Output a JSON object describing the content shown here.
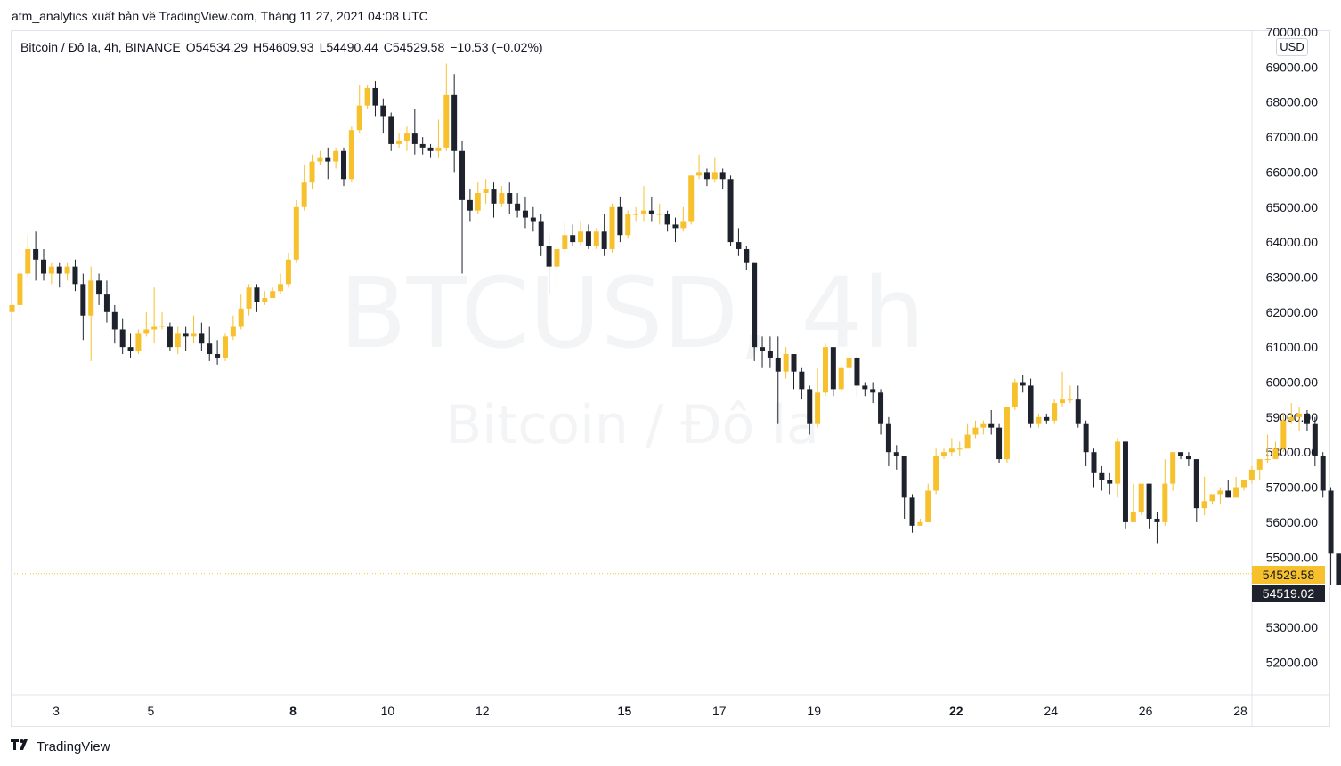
{
  "header": {
    "attribution": "atm_analytics xuất bản về TradingView.com, Tháng 11 27, 2021 04:08 UTC"
  },
  "legend": {
    "symbol": "Bitcoin / Đô la, 4h, BINANCE",
    "open": "O54534.29",
    "high": "H54609.93",
    "low": "L54490.44",
    "close": "C54529.58",
    "change": "−10.53 (−0.02%)"
  },
  "currency": "USD",
  "watermark": {
    "line1": "BTCUSD, 4h",
    "line2": "Bitcoin / Đô la"
  },
  "price_labels": {
    "close": "54529.58",
    "prev": "54519.02"
  },
  "footer": {
    "brand": "TradingView"
  },
  "colors": {
    "up": "#f7c02d",
    "down": "#1e222d",
    "price_line": "#f7c02d"
  },
  "chart_data": {
    "type": "candlestick",
    "ylim": [
      51000,
      70000
    ],
    "yticks": [
      "70000.00",
      "69000.00",
      "68000.00",
      "67000.00",
      "66000.00",
      "65000.00",
      "64000.00",
      "63000.00",
      "62000.00",
      "61000.00",
      "60000.00",
      "59000.00",
      "58000.00",
      "57000.00",
      "56000.00",
      "55000.00",
      "53000.00",
      "52000.00"
    ],
    "xticks": [
      {
        "label": "3",
        "day": 3,
        "bold": false
      },
      {
        "label": "5",
        "day": 5,
        "bold": false
      },
      {
        "label": "8",
        "day": 8,
        "bold": true
      },
      {
        "label": "10",
        "day": 10,
        "bold": false
      },
      {
        "label": "12",
        "day": 12,
        "bold": false
      },
      {
        "label": "15",
        "day": 15,
        "bold": true
      },
      {
        "label": "17",
        "day": 17,
        "bold": false
      },
      {
        "label": "19",
        "day": 19,
        "bold": false
      },
      {
        "label": "22",
        "day": 22,
        "bold": true
      },
      {
        "label": "24",
        "day": 24,
        "bold": false
      },
      {
        "label": "26",
        "day": 26,
        "bold": false
      },
      {
        "label": "28",
        "day": 28,
        "bold": false
      }
    ],
    "x_start_day": 2.07,
    "candle_interval_days": 0.1667,
    "current_price": 54529.58,
    "candles": [
      [
        62000,
        62600,
        62200,
        61300
      ],
      [
        62200,
        63200,
        63100,
        62000
      ],
      [
        63100,
        64200,
        63800,
        63000
      ],
      [
        63800,
        64300,
        63500,
        62900
      ],
      [
        63500,
        63800,
        63100,
        62900
      ],
      [
        63100,
        63400,
        63300,
        62800
      ],
      [
        63300,
        63400,
        63100,
        62700
      ],
      [
        63100,
        63400,
        63300,
        62900
      ],
      [
        63300,
        63500,
        62800,
        62600
      ],
      [
        62800,
        63100,
        61900,
        61200
      ],
      [
        61900,
        63300,
        62900,
        60600
      ],
      [
        62900,
        63100,
        62500,
        62200
      ],
      [
        62500,
        62900,
        62000,
        61700
      ],
      [
        62000,
        62200,
        61500,
        61100
      ],
      [
        61500,
        61800,
        61000,
        60800
      ],
      [
        61000,
        61400,
        60900,
        60700
      ],
      [
        60900,
        61500,
        61400,
        60800
      ],
      [
        61400,
        62000,
        61500,
        61300
      ],
      [
        61500,
        62700,
        61600,
        61100
      ],
      [
        61600,
        62000,
        61600,
        61500
      ],
      [
        61600,
        61700,
        61000,
        60900
      ],
      [
        61000,
        61600,
        61400,
        60800
      ],
      [
        61400,
        61600,
        61300,
        60900
      ],
      [
        61300,
        61900,
        61400,
        61100
      ],
      [
        61400,
        61700,
        61100,
        60900
      ],
      [
        61100,
        61600,
        60800,
        60600
      ],
      [
        60800,
        61200,
        60700,
        60500
      ],
      [
        60700,
        61400,
        61300,
        60600
      ],
      [
        61300,
        61900,
        61600,
        61200
      ],
      [
        61600,
        62500,
        62100,
        61500
      ],
      [
        62100,
        62800,
        62700,
        61900
      ],
      [
        62700,
        62800,
        62300,
        62000
      ],
      [
        62300,
        62600,
        62400,
        62200
      ],
      [
        62400,
        62700,
        62600,
        62400
      ],
      [
        62600,
        63100,
        62800,
        62500
      ],
      [
        62800,
        63700,
        63500,
        62700
      ],
      [
        63500,
        65200,
        65000,
        63400
      ],
      [
        65000,
        66200,
        65700,
        64900
      ],
      [
        65700,
        66500,
        66300,
        65500
      ],
      [
        66300,
        66600,
        66400,
        66200
      ],
      [
        66400,
        66700,
        66300,
        65800
      ],
      [
        66300,
        66700,
        66600,
        66100
      ],
      [
        66600,
        66700,
        65800,
        65600
      ],
      [
        65800,
        67300,
        67200,
        65700
      ],
      [
        67200,
        68500,
        67900,
        67100
      ],
      [
        67900,
        68500,
        68400,
        67800
      ],
      [
        68400,
        68600,
        67900,
        67600
      ],
      [
        67900,
        68100,
        67600,
        67100
      ],
      [
        67600,
        67700,
        66800,
        66600
      ],
      [
        66800,
        67100,
        66900,
        66700
      ],
      [
        66900,
        67300,
        67100,
        66600
      ],
      [
        67100,
        67800,
        66800,
        66500
      ],
      [
        66800,
        67000,
        66700,
        66500
      ],
      [
        66700,
        66800,
        66600,
        66400
      ],
      [
        66600,
        67500,
        66700,
        66400
      ],
      [
        66700,
        69100,
        68200,
        66600
      ],
      [
        68200,
        68800,
        66600,
        66000
      ],
      [
        66600,
        66900,
        65200,
        63100
      ],
      [
        65200,
        65500,
        64900,
        64600
      ],
      [
        64900,
        65700,
        65400,
        64800
      ],
      [
        65400,
        65800,
        65500,
        65100
      ],
      [
        65500,
        65700,
        65100,
        64700
      ],
      [
        65100,
        65600,
        65400,
        65000
      ],
      [
        65400,
        65700,
        65100,
        64800
      ],
      [
        65100,
        65400,
        64900,
        64700
      ],
      [
        64900,
        65300,
        64700,
        64400
      ],
      [
        64700,
        65000,
        64600,
        64300
      ],
      [
        64600,
        64800,
        63900,
        63600
      ],
      [
        63900,
        64200,
        63300,
        62500
      ],
      [
        63300,
        64000,
        63800,
        62600
      ],
      [
        63800,
        64600,
        64200,
        63700
      ],
      [
        64200,
        64500,
        64000,
        63900
      ],
      [
        64000,
        64600,
        64300,
        63900
      ],
      [
        64300,
        64500,
        63900,
        63800
      ],
      [
        63900,
        64400,
        64300,
        63800
      ],
      [
        64300,
        64800,
        63800,
        63600
      ],
      [
        63800,
        65100,
        65000,
        63700
      ],
      [
        65000,
        65300,
        64200,
        64000
      ],
      [
        64200,
        64900,
        64800,
        64100
      ],
      [
        64800,
        65000,
        64800,
        64600
      ],
      [
        64800,
        65600,
        64900,
        64600
      ],
      [
        64900,
        65300,
        64800,
        64600
      ],
      [
        64800,
        65100,
        64800,
        64500
      ],
      [
        64800,
        64900,
        64500,
        64300
      ],
      [
        64500,
        64700,
        64400,
        64000
      ],
      [
        64400,
        65000,
        64600,
        64300
      ],
      [
        64600,
        65900,
        65900,
        64500
      ],
      [
        65900,
        66500,
        66000,
        65800
      ],
      [
        66000,
        66100,
        65800,
        65600
      ],
      [
        65800,
        66400,
        66000,
        65700
      ],
      [
        66000,
        66100,
        65800,
        65500
      ],
      [
        65800,
        65900,
        64000,
        63900
      ],
      [
        64000,
        64400,
        63800,
        63600
      ],
      [
        63800,
        63900,
        63400,
        63200
      ],
      [
        63400,
        63400,
        61000,
        60600
      ],
      [
        61000,
        61300,
        60900,
        60400
      ],
      [
        60900,
        61300,
        60700,
        60400
      ],
      [
        60700,
        61300,
        60300,
        58800
      ],
      [
        60300,
        61000,
        60800,
        60100
      ],
      [
        60800,
        60800,
        60300,
        59800
      ],
      [
        60300,
        60400,
        59800,
        59500
      ],
      [
        59800,
        59900,
        58800,
        58500
      ],
      [
        58800,
        60400,
        59700,
        58700
      ],
      [
        59700,
        61100,
        61000,
        59600
      ],
      [
        61000,
        61000,
        59800,
        59600
      ],
      [
        59800,
        60500,
        60400,
        59700
      ],
      [
        60400,
        60800,
        60700,
        60200
      ],
      [
        60700,
        60800,
        59900,
        59600
      ],
      [
        59900,
        60000,
        59800,
        59600
      ],
      [
        59800,
        60000,
        59700,
        59400
      ],
      [
        59700,
        59800,
        58800,
        58500
      ],
      [
        58800,
        59000,
        58000,
        57600
      ],
      [
        58000,
        58200,
        57900,
        57500
      ],
      [
        57900,
        57900,
        56700,
        56100
      ],
      [
        56700,
        56800,
        55900,
        55700
      ],
      [
        55900,
        56100,
        56000,
        55900
      ],
      [
        56000,
        57100,
        56900,
        56000
      ],
      [
        56900,
        58100,
        57900,
        56800
      ],
      [
        57900,
        58100,
        58000,
        57800
      ],
      [
        58000,
        58400,
        58100,
        57900
      ],
      [
        58100,
        58300,
        58100,
        57900
      ],
      [
        58100,
        58800,
        58500,
        58100
      ],
      [
        58500,
        58900,
        58700,
        58400
      ],
      [
        58700,
        58900,
        58800,
        58500
      ],
      [
        58800,
        59200,
        58700,
        58500
      ],
      [
        58700,
        58800,
        57800,
        57700
      ],
      [
        57800,
        59300,
        59300,
        57700
      ],
      [
        59300,
        60100,
        60000,
        59200
      ],
      [
        60000,
        60200,
        59900,
        59700
      ],
      [
        59900,
        60100,
        58800,
        58700
      ],
      [
        58800,
        59100,
        59000,
        58700
      ],
      [
        59000,
        59100,
        58900,
        58800
      ],
      [
        58900,
        59500,
        59400,
        58800
      ],
      [
        59400,
        60300,
        59500,
        59300
      ],
      [
        59500,
        59900,
        59500,
        59400
      ],
      [
        59500,
        59900,
        58800,
        58700
      ],
      [
        58800,
        58900,
        58000,
        57600
      ],
      [
        58000,
        58100,
        57400,
        57000
      ],
      [
        57400,
        57600,
        57200,
        56900
      ],
      [
        57200,
        57400,
        57100,
        56800
      ],
      [
        57100,
        58400,
        58300,
        56700
      ],
      [
        58300,
        58300,
        56000,
        55800
      ],
      [
        56000,
        57100,
        56300,
        56000
      ],
      [
        56300,
        57100,
        57100,
        56200
      ],
      [
        57100,
        57100,
        56100,
        55800
      ],
      [
        56100,
        56300,
        56000,
        55400
      ],
      [
        56000,
        57800,
        57100,
        55900
      ],
      [
        57100,
        58000,
        58000,
        56900
      ],
      [
        58000,
        58000,
        57900,
        57800
      ],
      [
        57900,
        58000,
        57800,
        57600
      ],
      [
        57800,
        57800,
        56400,
        56000
      ],
      [
        56400,
        57300,
        56600,
        56200
      ],
      [
        56600,
        56800,
        56800,
        56500
      ],
      [
        56800,
        57000,
        56900,
        56500
      ],
      [
        56900,
        57200,
        56700,
        56700
      ],
      [
        56700,
        57300,
        57000,
        56700
      ],
      [
        57000,
        57200,
        57200,
        56900
      ],
      [
        57200,
        57600,
        57500,
        57100
      ],
      [
        57500,
        57800,
        57800,
        57200
      ],
      [
        57800,
        58500,
        57800,
        57700
      ],
      [
        57800,
        58300,
        58100,
        57800
      ],
      [
        58100,
        59100,
        58900,
        58000
      ],
      [
        58900,
        59400,
        59000,
        58800
      ],
      [
        59000,
        59300,
        59100,
        58600
      ],
      [
        59100,
        59200,
        58800,
        58600
      ],
      [
        58800,
        59000,
        57900,
        57600
      ],
      [
        57900,
        58000,
        56900,
        56700
      ],
      [
        56900,
        57000,
        55100,
        54200
      ],
      [
        55100,
        55100,
        54200,
        54200
      ],
      [
        54200,
        54800,
        54700,
        54000
      ],
      [
        54700,
        54900,
        54700,
        54600
      ],
      [
        54700,
        54800,
        54200,
        54100
      ],
      [
        54200,
        54800,
        54500,
        54100
      ],
      [
        54500,
        54600,
        54500,
        54500
      ]
    ]
  }
}
